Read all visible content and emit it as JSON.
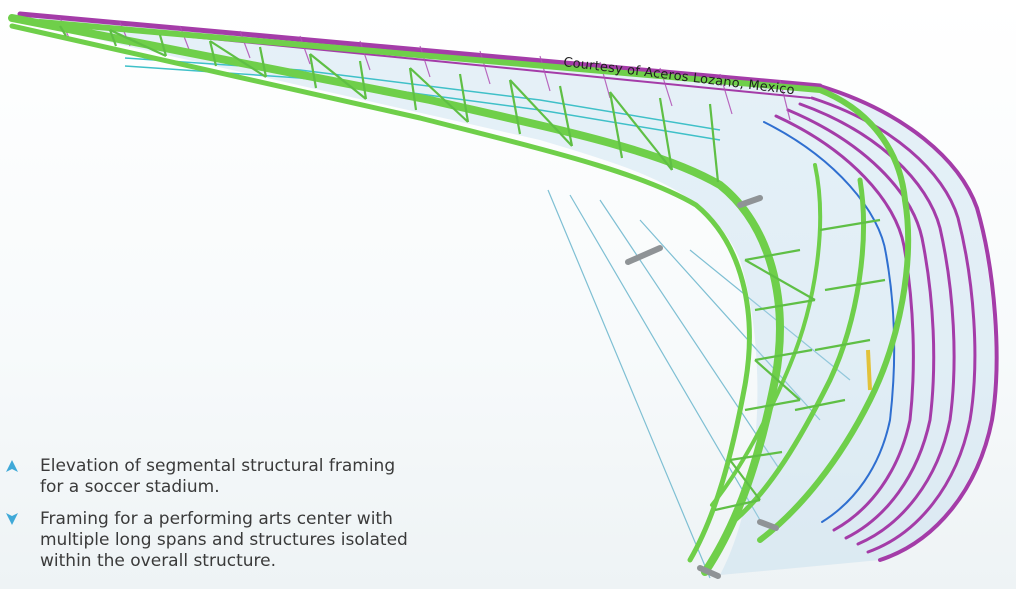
{
  "figure": {
    "credit": "Courtesy of Aceros Lozano, Mexico",
    "colors": {
      "green_member": "#6fcf4a",
      "green_dark": "#4fa83a",
      "purple_member": "#a43ca8",
      "blue_member": "#2f6fd0",
      "cyan_brace": "#3fc0c8",
      "gray_support": "#8f9396",
      "cable": "#6fb8cf",
      "marker": "#3fa9d8"
    }
  },
  "captions": [
    {
      "marker": "up-triangle-icon",
      "lines": [
        "Elevation of segmental structural framing",
        "for a soccer stadium."
      ]
    },
    {
      "marker": "down-triangle-icon",
      "lines": [
        "Framing for a performing arts center with",
        "multiple long spans and structures isolated",
        "within the overall structure."
      ]
    }
  ]
}
